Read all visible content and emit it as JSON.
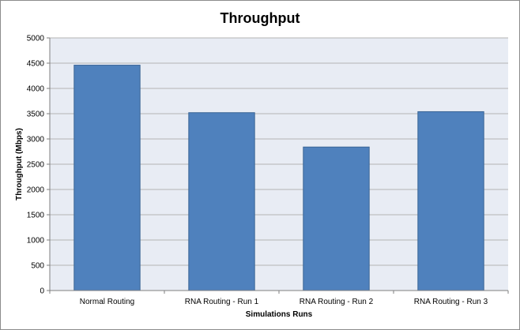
{
  "chart_data": {
    "type": "bar",
    "title": "Throughput",
    "xlabel": "Simulations Runs",
    "ylabel": "Throughput (Mbps)",
    "categories": [
      "Normal Routing",
      "RNA Routing - Run 1",
      "RNA Routing - Run 2",
      "RNA Routing - Run 3"
    ],
    "values": [
      4460,
      3520,
      2840,
      3540
    ],
    "ylim": [
      0,
      5000
    ],
    "yticks": [
      "0",
      "500",
      "1000",
      "1500",
      "2000",
      "2500",
      "3000",
      "3500",
      "4000",
      "4500",
      "5000"
    ],
    "grid": true,
    "legend": "none",
    "colors": {
      "bar_fill": "#4f81bd",
      "bar_stroke": "#3a6596",
      "plot_background": "#e8ecf4",
      "gridline": "#b3b3b3",
      "axis": "#7f7f7f"
    }
  }
}
